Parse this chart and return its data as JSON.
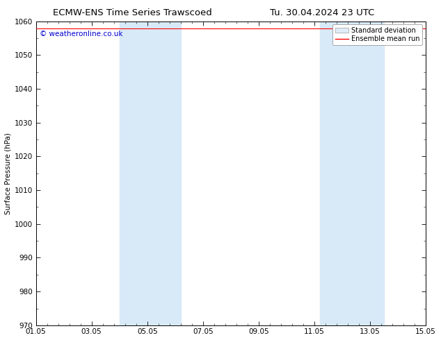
{
  "title_left": "ECMW-ENS Time Series Trawscoed",
  "title_right": "Tu. 30.04.2024 23 UTC",
  "ylabel": "Surface Pressure (hPa)",
  "ylim": [
    970,
    1060
  ],
  "yticks": [
    970,
    980,
    990,
    1000,
    1010,
    1020,
    1030,
    1040,
    1050,
    1060
  ],
  "xlim_start": 0,
  "xlim_end": 14,
  "xtick_labels": [
    "01.05",
    "03.05",
    "05.05",
    "07.05",
    "09.05",
    "11.05",
    "13.05",
    "15.05"
  ],
  "xtick_positions": [
    0,
    2,
    4,
    6,
    8,
    10,
    12,
    14
  ],
  "shaded_regions": [
    {
      "x_start": 3.0,
      "x_end": 5.2
    },
    {
      "x_start": 10.2,
      "x_end": 12.5
    }
  ],
  "shade_color": "#d8eaf8",
  "mean_run_color": "#ff0000",
  "mean_run_value": 1057.8,
  "background_color": "#ffffff",
  "watermark_text": "© weatheronline.co.uk",
  "watermark_color": "#0000cc",
  "watermark_fontsize": 7.5,
  "title_fontsize": 9.5,
  "axis_fontsize": 7.5,
  "ylabel_fontsize": 7.5,
  "legend_fontsize": 7,
  "border_color": "#000000"
}
